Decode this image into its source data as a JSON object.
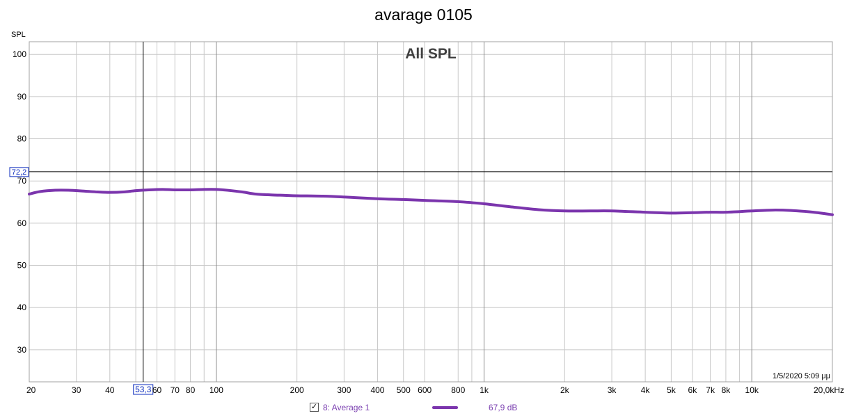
{
  "chart_data": {
    "type": "line",
    "title": "avarage 0105",
    "subtitle": "All SPL",
    "ylabel": "SPL",
    "xscale": "log",
    "xlim": [
      20,
      20000
    ],
    "ylim": [
      22.4,
      103
    ],
    "grid": true,
    "yticks": [
      30,
      40,
      50,
      60,
      70,
      80,
      90,
      100
    ],
    "xtick_values": [
      20,
      30,
      40,
      60,
      70,
      80,
      100,
      200,
      300,
      400,
      500,
      600,
      800,
      1000,
      2000,
      3000,
      4000,
      5000,
      6000,
      7000,
      8000,
      10000,
      20000
    ],
    "xtick_labels": [
      "20",
      "30",
      "40",
      "60",
      "70",
      "80",
      "100",
      "200",
      "300",
      "400",
      "500",
      "600",
      "800",
      "1k",
      "2k",
      "3k",
      "4k",
      "5k",
      "6k",
      "7k",
      "8k",
      "10k",
      "20,0kHz"
    ],
    "minor_x_gridlines": [
      50,
      90,
      900,
      9000
    ],
    "major_x_gridlines": [
      100,
      1000,
      10000
    ],
    "cursor": {
      "x": 53.3,
      "y": 72.2,
      "x_label": "53,3",
      "y_label": "72,2"
    },
    "timestamp": "1/5/2020 5:09 μμ",
    "series": [
      {
        "name": "8: Average 1",
        "color": "#7b35ad",
        "value_label": "67,9 dB",
        "x": [
          20,
          22,
          25,
          28,
          32,
          36,
          40,
          45,
          50,
          56,
          63,
          70,
          80,
          90,
          100,
          110,
          125,
          140,
          160,
          180,
          200,
          250,
          300,
          400,
          500,
          600,
          800,
          1000,
          1250,
          1600,
          2000,
          2500,
          3000,
          4000,
          5000,
          6000,
          7000,
          8000,
          10000,
          12000,
          14000,
          17000,
          20000
        ],
        "y": [
          66.9,
          67.5,
          67.8,
          67.8,
          67.6,
          67.4,
          67.3,
          67.4,
          67.7,
          67.9,
          68.0,
          67.9,
          67.9,
          68.0,
          68.0,
          67.8,
          67.4,
          66.9,
          66.7,
          66.6,
          66.5,
          66.4,
          66.2,
          65.8,
          65.6,
          65.4,
          65.1,
          64.6,
          63.9,
          63.2,
          62.9,
          62.9,
          62.9,
          62.6,
          62.4,
          62.5,
          62.6,
          62.6,
          62.9,
          63.1,
          63.0,
          62.6,
          62.0
        ]
      }
    ]
  },
  "legend": {
    "checkbox_mark": "✓"
  }
}
